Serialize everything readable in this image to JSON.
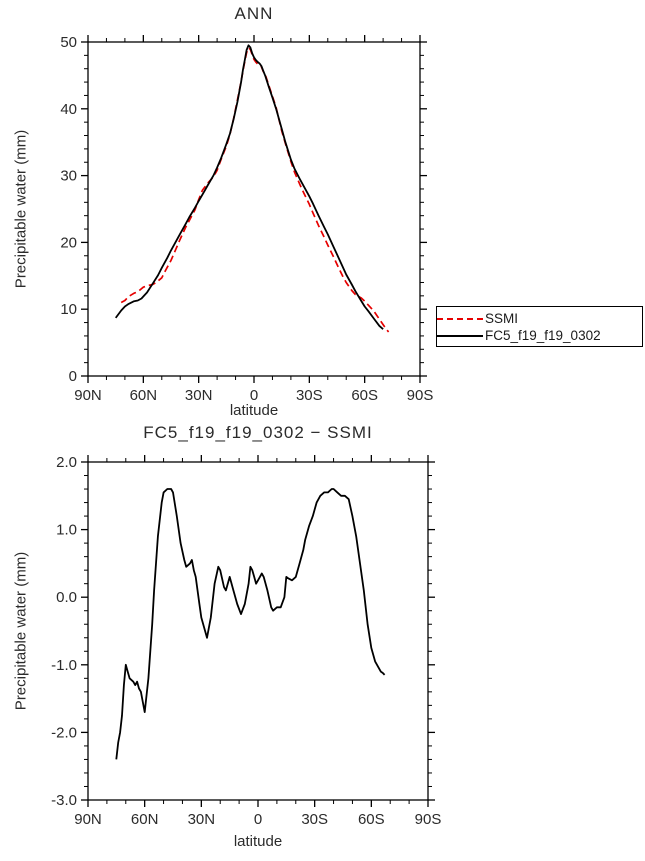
{
  "page": {
    "background": "#ffffff",
    "text_color": "#2b2b2b"
  },
  "chart_data": [
    {
      "type": "line",
      "title": "ANN",
      "xlabel": "latitude",
      "ylabel": "Precipitable water (mm)",
      "xlim": [
        90,
        -90
      ],
      "ylim": [
        0,
        50
      ],
      "xticks": {
        "values": [
          90,
          60,
          30,
          0,
          -30,
          -60,
          -90
        ],
        "labels": [
          "90N",
          "60N",
          "30N",
          "0",
          "30S",
          "60S",
          "90S"
        ],
        "minor_step": 10
      },
      "yticks": {
        "values": [
          0,
          10,
          20,
          30,
          40,
          50
        ],
        "labels": [
          "0",
          "10",
          "20",
          "30",
          "40",
          "50"
        ],
        "minor_step": 2
      },
      "grid": false,
      "legend": {
        "position": "outside-right",
        "items": [
          "SSMI",
          "FC5_f19_f19_0302"
        ]
      },
      "series": [
        {
          "name": "SSMI",
          "color": "#e60000",
          "style": "dashed",
          "x": [
            72,
            70,
            68,
            65,
            63,
            60,
            58,
            55,
            53,
            50,
            48,
            45,
            42,
            40,
            37,
            35,
            32,
            30,
            28,
            25,
            22,
            20,
            18,
            15,
            13,
            11,
            9,
            7,
            6,
            5,
            4,
            3,
            2,
            1,
            0,
            -1,
            -2,
            -3,
            -4,
            -5,
            -6,
            -8,
            -10,
            -12,
            -15,
            -17,
            -20,
            -22,
            -25,
            -27,
            -30,
            -32,
            -35,
            -38,
            -40,
            -43,
            -45,
            -48,
            -50,
            -53,
            -55,
            -58,
            -60,
            -62,
            -65,
            -68,
            -70,
            -72,
            -73
          ],
          "y": [
            11.0,
            11.3,
            11.9,
            12.4,
            12.6,
            13.3,
            13.5,
            13.7,
            14.0,
            14.7,
            15.8,
            17.3,
            19.2,
            20.5,
            22.3,
            23.3,
            24.9,
            26.4,
            27.8,
            28.9,
            29.8,
            30.8,
            32.3,
            34.4,
            36.2,
            38.6,
            41.3,
            44.1,
            45.6,
            47.1,
            48.4,
            49.1,
            48.9,
            48.1,
            47.4,
            47.0,
            46.7,
            46.5,
            46.3,
            45.6,
            45.2,
            43.5,
            41.9,
            40.2,
            36.7,
            34.8,
            32.1,
            30.5,
            28.6,
            27.4,
            25.7,
            24.4,
            22.5,
            20.8,
            19.6,
            17.9,
            16.7,
            15.0,
            14.0,
            12.8,
            12.2,
            11.7,
            11.2,
            10.6,
            9.7,
            8.5,
            7.7,
            6.9,
            6.6
          ]
        },
        {
          "name": "FC5_f19_f19_0302",
          "color": "#000000",
          "style": "solid",
          "x": [
            75,
            72,
            70,
            68,
            65,
            63,
            61,
            60,
            58,
            55,
            52,
            50,
            47,
            45,
            42,
            40,
            37,
            35,
            32,
            30,
            27,
            25,
            22,
            20,
            18,
            15,
            13,
            11,
            9,
            7,
            6,
            5,
            4,
            3,
            2,
            1,
            0,
            -1,
            -2,
            -3,
            -4,
            -5,
            -6,
            -8,
            -10,
            -12,
            -15,
            -17,
            -20,
            -22,
            -25,
            -27,
            -30,
            -32,
            -35,
            -38,
            -40,
            -43,
            -45,
            -48,
            -50,
            -53,
            -55,
            -58,
            -60,
            -62,
            -65,
            -68,
            -70
          ],
          "y": [
            8.7,
            9.8,
            10.4,
            10.8,
            11.2,
            11.3,
            11.6,
            11.9,
            12.5,
            13.8,
            15.1,
            16.2,
            17.7,
            18.8,
            20.3,
            21.3,
            22.8,
            23.8,
            25.2,
            26.2,
            27.6,
            28.6,
            30.0,
            31.2,
            32.5,
            34.7,
            36.3,
            38.5,
            41.0,
            44.0,
            45.8,
            47.3,
            48.8,
            49.5,
            49.2,
            48.3,
            47.7,
            47.3,
            47.0,
            46.8,
            46.4,
            45.7,
            45.0,
            43.3,
            41.7,
            40.0,
            37.0,
            35.0,
            32.4,
            31.0,
            29.4,
            28.4,
            26.9,
            25.8,
            24.0,
            22.3,
            21.2,
            19.4,
            18.2,
            16.4,
            15.2,
            13.7,
            12.7,
            11.3,
            10.4,
            9.7,
            8.6,
            7.5,
            7.0
          ]
        }
      ]
    },
    {
      "type": "line",
      "title": "FC5_f19_f19_0302 − SSMI",
      "xlabel": "latitude",
      "ylabel": "Precipitable water (mm)",
      "xlim": [
        90,
        -90
      ],
      "ylim": [
        -3.0,
        2.0
      ],
      "xticks": {
        "values": [
          90,
          60,
          30,
          0,
          -30,
          -60,
          -90
        ],
        "labels": [
          "90N",
          "60N",
          "30N",
          "0",
          "30S",
          "60S",
          "90S"
        ],
        "minor_step": 10
      },
      "yticks": {
        "values": [
          -3.0,
          -2.0,
          -1.0,
          0.0,
          1.0,
          2.0
        ],
        "labels": [
          "-3.0",
          "-2.0",
          "-1.0",
          "0.0",
          "1.0",
          "2.0"
        ],
        "minor_step": 0.2
      },
      "grid": false,
      "series": [
        {
          "name": "FC5_f19_f19_0302 - SSMI",
          "color": "#000000",
          "style": "solid",
          "x": [
            75,
            74,
            73,
            72,
            71,
            70,
            69,
            68,
            66,
            65,
            64,
            63,
            62,
            61,
            60,
            58,
            56,
            55,
            53,
            51,
            50,
            48,
            46,
            45,
            43,
            41,
            39,
            38,
            36,
            35,
            34,
            33,
            31,
            30,
            28,
            27,
            25,
            23,
            21,
            20,
            18,
            17,
            15,
            13,
            11,
            9,
            7,
            5,
            4,
            3,
            2,
            1,
            0,
            -1,
            -2,
            -3,
            -5,
            -7,
            -8,
            -10,
            -12,
            -14,
            -15,
            -16,
            -18,
            -20,
            -22,
            -24,
            -25,
            -27,
            -29,
            -31,
            -33,
            -35,
            -37,
            -39,
            -40,
            -42,
            -44,
            -46,
            -48,
            -50,
            -52,
            -54,
            -56,
            -58,
            -60,
            -62,
            -64,
            -65,
            -66,
            -67
          ],
          "y": [
            -2.4,
            -2.15,
            -2.0,
            -1.75,
            -1.3,
            -1.0,
            -1.1,
            -1.2,
            -1.25,
            -1.3,
            -1.25,
            -1.35,
            -1.4,
            -1.55,
            -1.7,
            -1.2,
            -0.4,
            0.1,
            0.9,
            1.4,
            1.55,
            1.6,
            1.6,
            1.55,
            1.2,
            0.8,
            0.55,
            0.45,
            0.5,
            0.55,
            0.4,
            0.3,
            -0.1,
            -0.3,
            -0.5,
            -0.6,
            -0.3,
            0.2,
            0.45,
            0.4,
            0.15,
            0.1,
            0.3,
            0.1,
            -0.1,
            -0.25,
            -0.1,
            0.2,
            0.45,
            0.4,
            0.3,
            0.2,
            0.25,
            0.3,
            0.35,
            0.3,
            0.1,
            -0.15,
            -0.2,
            -0.15,
            -0.15,
            0.0,
            0.3,
            0.28,
            0.25,
            0.3,
            0.5,
            0.7,
            0.85,
            1.05,
            1.2,
            1.4,
            1.5,
            1.55,
            1.55,
            1.6,
            1.6,
            1.55,
            1.5,
            1.5,
            1.45,
            1.2,
            0.9,
            0.5,
            0.1,
            -0.4,
            -0.75,
            -0.95,
            -1.05,
            -1.1,
            -1.12,
            -1.15
          ]
        }
      ]
    }
  ]
}
